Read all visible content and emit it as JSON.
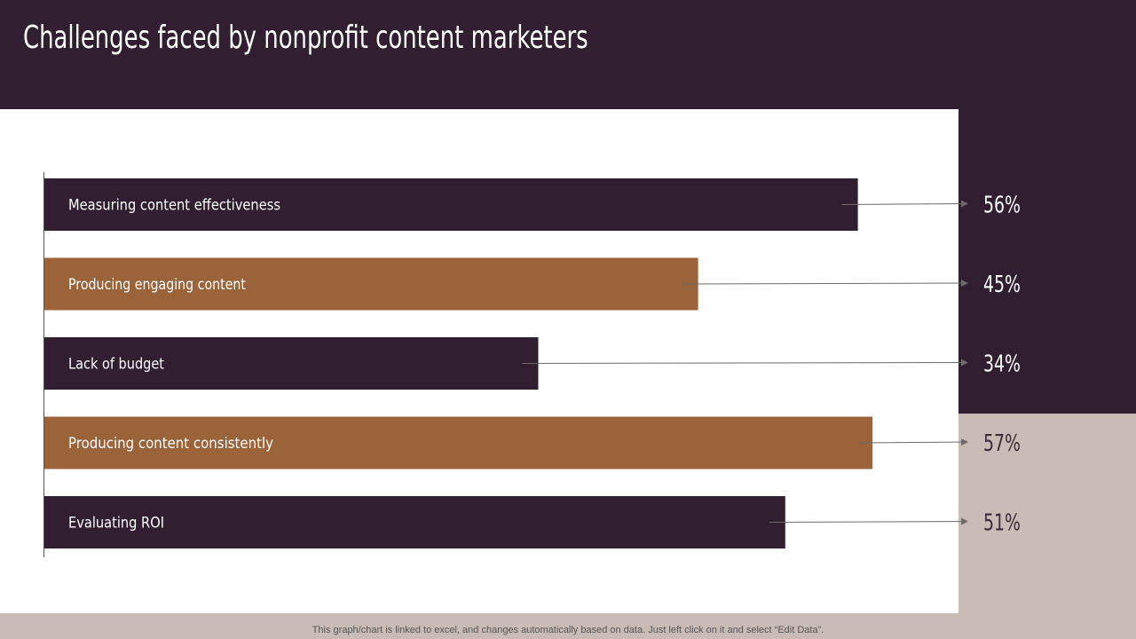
{
  "title": "Challenges faced by nonprofit content marketers",
  "footer_note": "This graph/chart is linked to excel, and changes automatically based on data. Just left click on it and select “Edit Data”.",
  "colors": {
    "dark": "#311e30",
    "brown": "#9a6339",
    "light_bg": "#c9bcb7",
    "value_on_dark": "#ffffff",
    "value_on_light": "#3a2a35"
  },
  "chart_data": {
    "type": "bar",
    "orientation": "horizontal",
    "categories": [
      "Measuring content effectiveness",
      "Producing engaging content",
      "Lack of budget",
      "Producing content consistently",
      "Evaluating ROI"
    ],
    "values": [
      56,
      45,
      34,
      57,
      51
    ],
    "value_labels": [
      "56%",
      "45%",
      "34%",
      "57%",
      "51%"
    ],
    "bar_colors": [
      "#311e30",
      "#9a6339",
      "#311e30",
      "#9a6339",
      "#311e30"
    ],
    "title": "",
    "xlabel": "",
    "ylabel": "",
    "xlim": [
      0,
      60
    ],
    "grid": false,
    "legend": "none"
  }
}
